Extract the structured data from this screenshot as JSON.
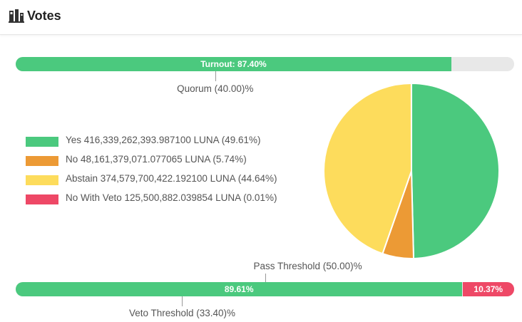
{
  "header": {
    "title": "Votes",
    "icon": "ballot-box-icon"
  },
  "turnout": {
    "label": "Turnout: 87.40%",
    "fraction": 0.874
  },
  "quorum": {
    "label": "Quorum (40.00)%",
    "fraction": 0.4
  },
  "legend": [
    {
      "text": "Yes 416,339,262,393.987100 LUNA (49.61%)",
      "color": "#4bc97e"
    },
    {
      "text": "No 48,161,379,071.077065 LUNA (5.74%)",
      "color": "#ec9a35"
    },
    {
      "text": "Abstain 374,579,700,422.192100 LUNA (44.64%)",
      "color": "#fddc5c"
    },
    {
      "text": "No With Veto 125,500,882.039854 LUNA (0.01%)",
      "color": "#ee4866"
    }
  ],
  "pie": {
    "slices": [
      {
        "name": "Yes",
        "percent": 49.61,
        "color": "#4bc97e"
      },
      {
        "name": "No",
        "percent": 5.74,
        "color": "#ec9a35"
      },
      {
        "name": "Abstain",
        "percent": 44.64,
        "color": "#fddc5c"
      },
      {
        "name": "No With Veto",
        "percent": 0.01,
        "color": "#ee4866"
      }
    ]
  },
  "pass_threshold": {
    "label": "Pass Threshold (50.00)%",
    "fraction": 0.5
  },
  "result": {
    "yes_label": "89.61%",
    "yes_fraction": 0.8961,
    "veto_label": "10.37%",
    "veto_fraction": 0.1037
  },
  "veto_threshold": {
    "label": "Veto Threshold (33.40)%",
    "fraction": 0.334
  }
}
